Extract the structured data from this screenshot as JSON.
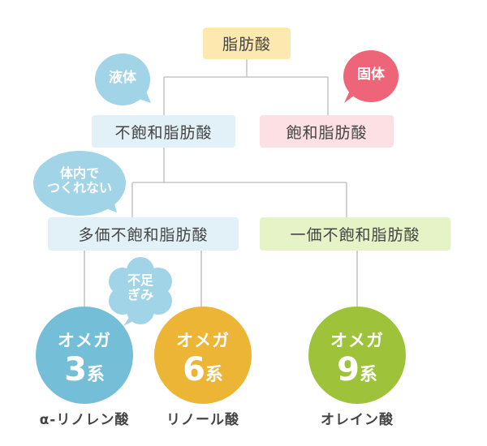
{
  "root": "脂肪酸",
  "unsaturated": "不飽和脂肪酸",
  "saturated": "飽和脂肪酸",
  "polyunsaturated": "多価不飽和脂肪酸",
  "monounsaturated": "一価不飽和脂肪酸",
  "bubbles": {
    "liquid": "液体",
    "solid": "固体",
    "cannot_make_1": "体内で",
    "cannot_make_2": "つくれない",
    "deficient_1": "不足",
    "deficient_2": "ぎみ"
  },
  "omegas": [
    {
      "top": "オメガ",
      "num": "3",
      "suffix": "系",
      "example": "α-リノレン酸",
      "color": "#74bfd7"
    },
    {
      "top": "オメガ",
      "num": "6",
      "suffix": "系",
      "example": "リノール酸",
      "color": "#ecb535"
    },
    {
      "top": "オメガ",
      "num": "9",
      "suffix": "系",
      "example": "オレイン酸",
      "color": "#9ec33a"
    }
  ],
  "colors": {
    "root": "#fde9b0",
    "unsat": "#e1f1f7",
    "sat": "#fde0e3",
    "mono": "#e6f3c6",
    "bubble_blue": "#a0d4e6",
    "bubble_pink": "#ee6478",
    "line": "#bbbbbb"
  }
}
